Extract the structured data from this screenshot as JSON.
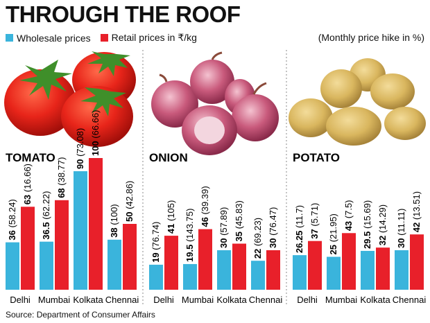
{
  "title": "THROUGH THE ROOF",
  "legend": [
    {
      "label": "Wholesale prices",
      "color": "#3ab4dc"
    },
    {
      "label": "Retail prices in ₹/kg",
      "color": "#e8202a"
    }
  ],
  "note": "(Monthly price hike in %)",
  "source": "Source: Department of Consumer Affairs",
  "chart_data": [
    {
      "type": "bar",
      "title": "TOMATO",
      "categories": [
        "Delhi",
        "Mumbai",
        "Kolkata",
        "Chennai"
      ],
      "series": [
        {
          "name": "Wholesale prices",
          "values": [
            36,
            36.5,
            90,
            38
          ],
          "labels": [
            "36",
            "36.5",
            "90",
            "38"
          ],
          "hikes": [
            "(58.24)",
            "(62.22)",
            "(73.08)",
            "(100)"
          ]
        },
        {
          "name": "Retail prices in ₹/kg",
          "values": [
            63,
            68,
            100,
            50
          ],
          "labels": [
            "63",
            "68",
            "100",
            "50"
          ],
          "hikes": [
            "(16.66)",
            "(38.77)",
            "(66.66)",
            "(42.86)"
          ]
        }
      ],
      "ylim": [
        0,
        100
      ]
    },
    {
      "type": "bar",
      "title": "ONION",
      "categories": [
        "Delhi",
        "Mumbai",
        "Kolkata",
        "Chennai"
      ],
      "series": [
        {
          "name": "Wholesale prices",
          "values": [
            19,
            19.5,
            30,
            22
          ],
          "labels": [
            "19",
            "19.5",
            "30",
            "22"
          ],
          "hikes": [
            "(76.74)",
            "(143.75)",
            "(57.89)",
            "(69.23)"
          ]
        },
        {
          "name": "Retail prices in ₹/kg",
          "values": [
            41,
            46,
            35,
            30
          ],
          "labels": [
            "41",
            "46",
            "35",
            "30"
          ],
          "hikes": [
            "(105)",
            "(39.39)",
            "(45.83)",
            "(76.47)"
          ]
        }
      ],
      "ylim": [
        0,
        100
      ]
    },
    {
      "type": "bar",
      "title": "POTATO",
      "categories": [
        "Delhi",
        "Mumbai",
        "Kolkata",
        "Chennai"
      ],
      "series": [
        {
          "name": "Wholesale prices",
          "values": [
            26.25,
            25,
            29.5,
            30
          ],
          "labels": [
            "26.25",
            "25",
            "29.5",
            "30"
          ],
          "hikes": [
            "(11.7)",
            "(21.95)",
            "(15.69)",
            "(11.11)"
          ]
        },
        {
          "name": "Retail prices in ₹/kg",
          "values": [
            37,
            43,
            32,
            42
          ],
          "labels": [
            "37",
            "43",
            "32",
            "42"
          ],
          "hikes": [
            "(5.71)",
            "(7.5)",
            "(14.29)",
            "(13.51)"
          ]
        }
      ],
      "ylim": [
        0,
        100
      ]
    }
  ]
}
